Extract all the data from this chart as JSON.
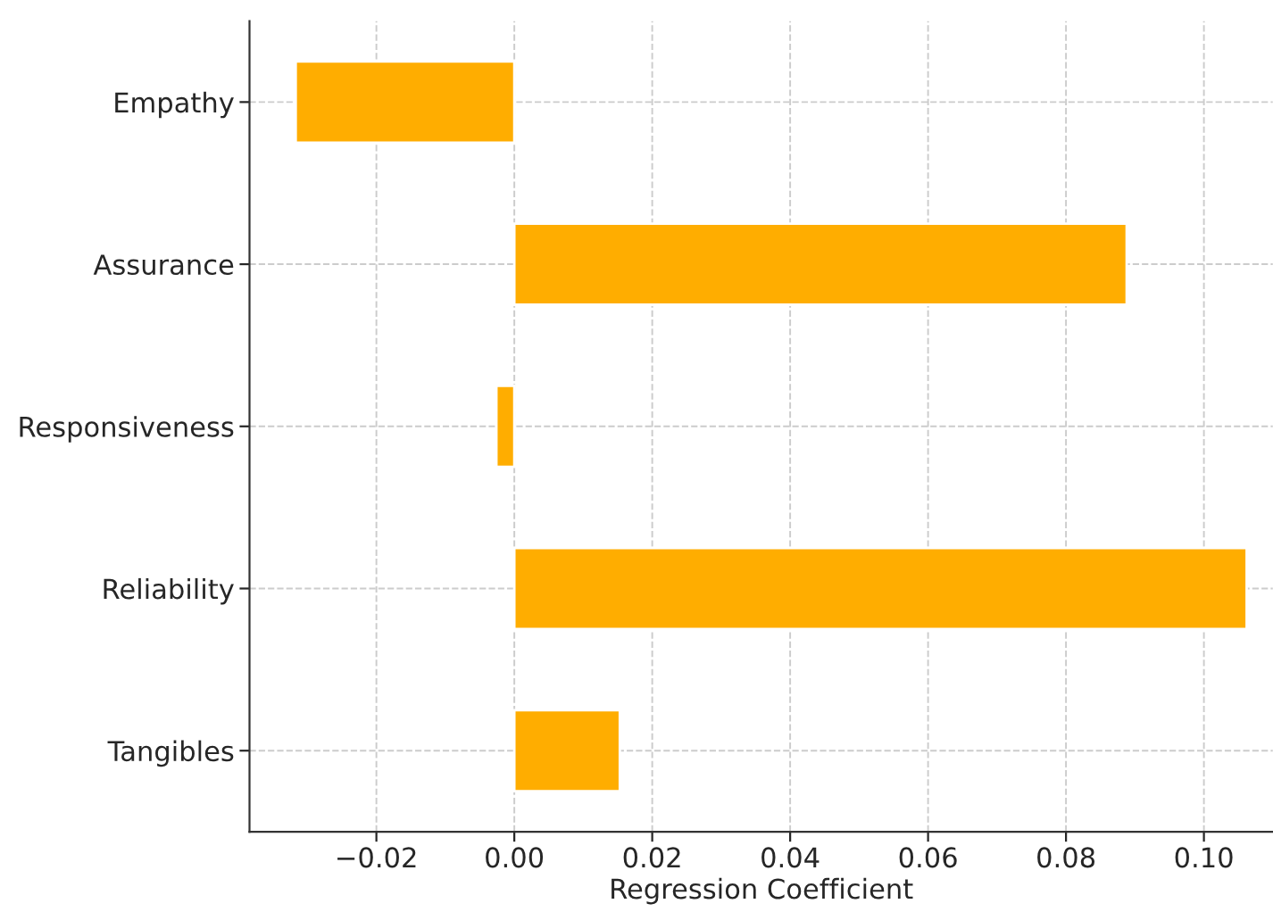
{
  "chart_data": {
    "type": "bar",
    "orientation": "horizontal",
    "xlabel": "Regression Coefficient",
    "categories": [
      "Empathy",
      "Assurance",
      "Responsiveness",
      "Reliability",
      "Tangibles"
    ],
    "values": [
      -0.0317,
      0.0888,
      -0.0026,
      0.1062,
      0.0153
    ],
    "color": "#ffad00",
    "xlim": [
      -0.0384,
      0.11
    ],
    "xticks": [
      {
        "value": -0.02,
        "label": "−0.02"
      },
      {
        "value": 0.0,
        "label": "0.00"
      },
      {
        "value": 0.02,
        "label": "0.02"
      },
      {
        "value": 0.04,
        "label": "0.04"
      },
      {
        "value": 0.06,
        "label": "0.06"
      },
      {
        "value": 0.08,
        "label": "0.08"
      },
      {
        "value": 0.1,
        "label": "0.10"
      }
    ],
    "grid": true,
    "legend": false
  }
}
